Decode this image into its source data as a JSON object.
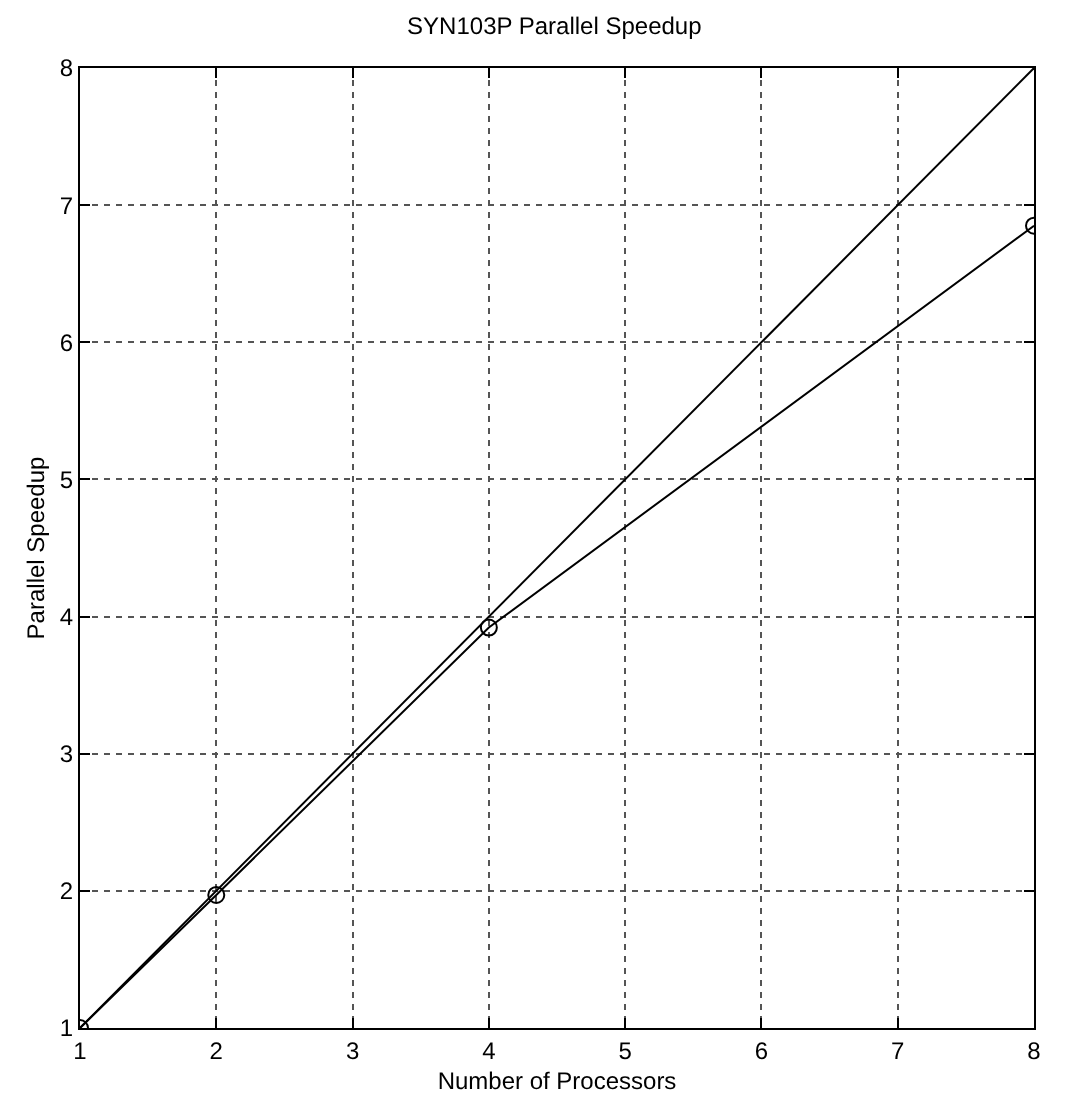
{
  "chart_data": {
    "type": "line",
    "title": "SYN103P Parallel Speedup",
    "xlabel": "Number of Processors",
    "ylabel": "Parallel Speedup",
    "xlim": [
      1,
      8
    ],
    "xticks": [
      1,
      2,
      3,
      4,
      5,
      6,
      7,
      8
    ],
    "ylim": [
      1,
      8
    ],
    "yticks": [
      1,
      2,
      3,
      4,
      5,
      6,
      7,
      8
    ],
    "grid": true,
    "line_style": "solid",
    "series": [
      {
        "color": "#000000",
        "x": [
          1,
          8
        ],
        "values": [
          1,
          8
        ]
      },
      {
        "color": "#000000",
        "x": [
          1,
          2,
          4,
          8
        ],
        "values": [
          1,
          1.97,
          3.92,
          6.85
        ],
        "marker": "circle"
      }
    ]
  }
}
